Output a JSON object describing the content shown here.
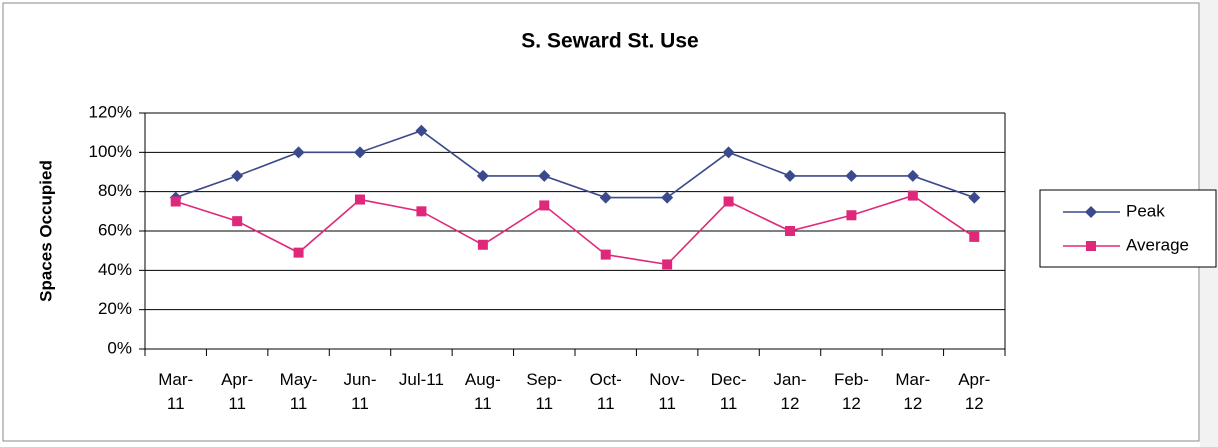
{
  "chart_data": {
    "type": "line",
    "title": "S. Seward St. Use",
    "y_label": "Spaces Occupied",
    "categories": [
      "Mar-11",
      "Apr-11",
      "May-11",
      "Jun-11",
      "Jul-11",
      "Aug-11",
      "Sep-11",
      "Oct-11",
      "Nov-11",
      "Dec-11",
      "Jan-12",
      "Feb-12",
      "Mar-12",
      "Apr-12"
    ],
    "series": [
      {
        "name": "Peak",
        "color": "#3b4a8c",
        "marker": "diamond",
        "values": [
          77,
          88,
          100,
          100,
          111,
          88,
          88,
          77,
          77,
          100,
          88,
          88,
          88,
          77
        ]
      },
      {
        "name": "Average",
        "color": "#e0287a",
        "marker": "square",
        "values": [
          75,
          65,
          49,
          76,
          70,
          53,
          73,
          48,
          43,
          75,
          60,
          68,
          78,
          57
        ]
      }
    ],
    "ylim": [
      0,
      120
    ],
    "yticks": [
      {
        "value": 0,
        "label": "0%"
      },
      {
        "value": 20,
        "label": "20%"
      },
      {
        "value": 40,
        "label": "40%"
      },
      {
        "value": 60,
        "label": "60%"
      },
      {
        "value": 80,
        "label": "80%"
      },
      {
        "value": 100,
        "label": "100%"
      },
      {
        "value": 120,
        "label": "120%"
      }
    ],
    "grid": true,
    "legend": "right"
  }
}
